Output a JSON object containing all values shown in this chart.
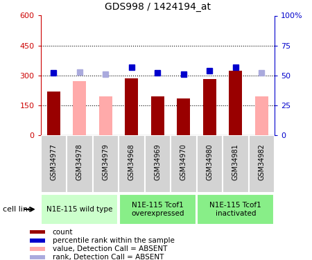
{
  "title": "GDS998 / 1424194_at",
  "samples": [
    "GSM34977",
    "GSM34978",
    "GSM34979",
    "GSM34968",
    "GSM34969",
    "GSM34970",
    "GSM34980",
    "GSM34981",
    "GSM34982"
  ],
  "count_values": [
    220,
    null,
    null,
    285,
    195,
    185,
    280,
    325,
    null
  ],
  "absent_values": [
    null,
    270,
    195,
    null,
    null,
    null,
    null,
    null,
    195
  ],
  "rank_present": [
    52,
    null,
    null,
    57,
    52,
    51,
    54,
    57,
    null
  ],
  "rank_absent": [
    null,
    53,
    51,
    null,
    null,
    null,
    null,
    null,
    52
  ],
  "ylim_left": [
    0,
    600
  ],
  "ylim_right": [
    0,
    100
  ],
  "yticks_left": [
    0,
    150,
    300,
    450,
    600
  ],
  "yticks_right": [
    0,
    25,
    50,
    75,
    100
  ],
  "ytick_labels_left": [
    "0",
    "150",
    "300",
    "450",
    "600"
  ],
  "ytick_labels_right": [
    "0",
    "25",
    "50",
    "75",
    "100%"
  ],
  "color_count": "#990000",
  "color_rank_present": "#0000cc",
  "color_absent_bar": "#ffaaaa",
  "color_rank_absent": "#aaaadd",
  "groups": [
    {
      "label": "N1E-115 wild type",
      "start": 0,
      "end": 3,
      "color": "#ccffcc"
    },
    {
      "label": "N1E-115 Tcof1\noverexpressed",
      "start": 3,
      "end": 6,
      "color": "#88ee88"
    },
    {
      "label": "N1E-115 Tcof1\ninactivated",
      "start": 6,
      "end": 9,
      "color": "#88ee88"
    }
  ],
  "cell_line_label": "cell line",
  "legend_items": [
    {
      "label": "count",
      "color": "#990000"
    },
    {
      "label": "percentile rank within the sample",
      "color": "#0000cc"
    },
    {
      "label": "value, Detection Call = ABSENT",
      "color": "#ffaaaa"
    },
    {
      "label": "rank, Detection Call = ABSENT",
      "color": "#aaaadd"
    }
  ]
}
